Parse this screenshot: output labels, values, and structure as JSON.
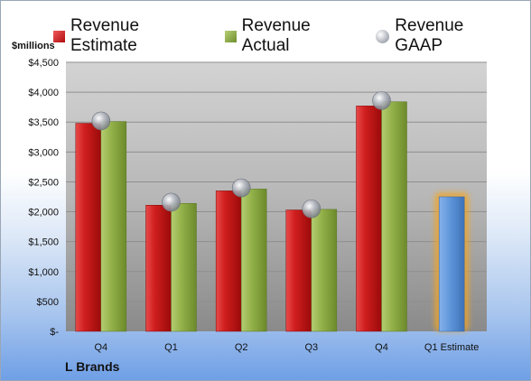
{
  "chart_data": {
    "type": "bar",
    "unit_label": "$millions",
    "categories": [
      "Q4",
      "Q1",
      "Q2",
      "Q3",
      "Q4",
      "Q1 Estimate"
    ],
    "series": [
      {
        "name": "Revenue Estimate",
        "color": "#c81414",
        "values": [
          3480,
          2110,
          2350,
          2030,
          3770,
          null
        ]
      },
      {
        "name": "Revenue Actual",
        "color": "#8aaa3e",
        "values": [
          3510,
          2140,
          2380,
          2040,
          3840,
          null
        ]
      },
      {
        "name": "Revenue GAAP",
        "color": "#a9adb5",
        "values": [
          3520,
          2160,
          2400,
          2050,
          3860,
          null
        ]
      }
    ],
    "estimate": {
      "category": "Q1 Estimate",
      "value": 2250,
      "color": "#5b93d8"
    },
    "y_ticks": [
      "$-",
      "$500",
      "$1,000",
      "$1,500",
      "$2,000",
      "$2,500",
      "$3,000",
      "$3,500",
      "$4,000",
      "$4,500"
    ],
    "ylim": [
      0,
      4500
    ],
    "grid": true,
    "legend_position": "top",
    "company": "L Brands"
  }
}
